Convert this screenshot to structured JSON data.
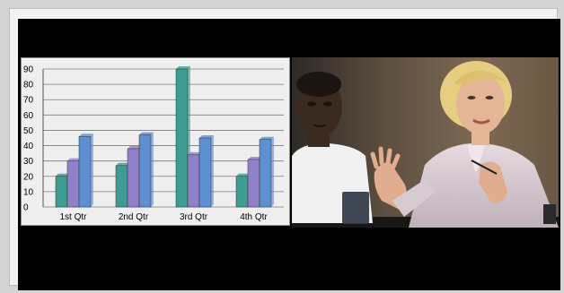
{
  "chart_data": {
    "type": "bar",
    "categories": [
      "1st Qtr",
      "2nd Qtr",
      "3rd Qtr",
      "4th Qtr"
    ],
    "series": [
      {
        "values": [
          20,
          27,
          90,
          20
        ]
      },
      {
        "values": [
          30,
          38,
          34,
          31
        ]
      },
      {
        "values": [
          46,
          47,
          45,
          44
        ]
      }
    ],
    "ylim": [
      0,
      90
    ],
    "yticks": [
      0,
      10,
      20,
      30,
      40,
      50,
      60,
      70,
      80,
      90
    ],
    "grid": true,
    "colors": [
      "#3f9c92",
      "#8f80c8",
      "#5e8fd0"
    ]
  },
  "photo": {
    "subject": "business-meeting-photo",
    "colors": {
      "background": "#5a4a3c",
      "shirt_left": "#f2f2f2",
      "blazer_right": "#d9cdd3"
    }
  }
}
